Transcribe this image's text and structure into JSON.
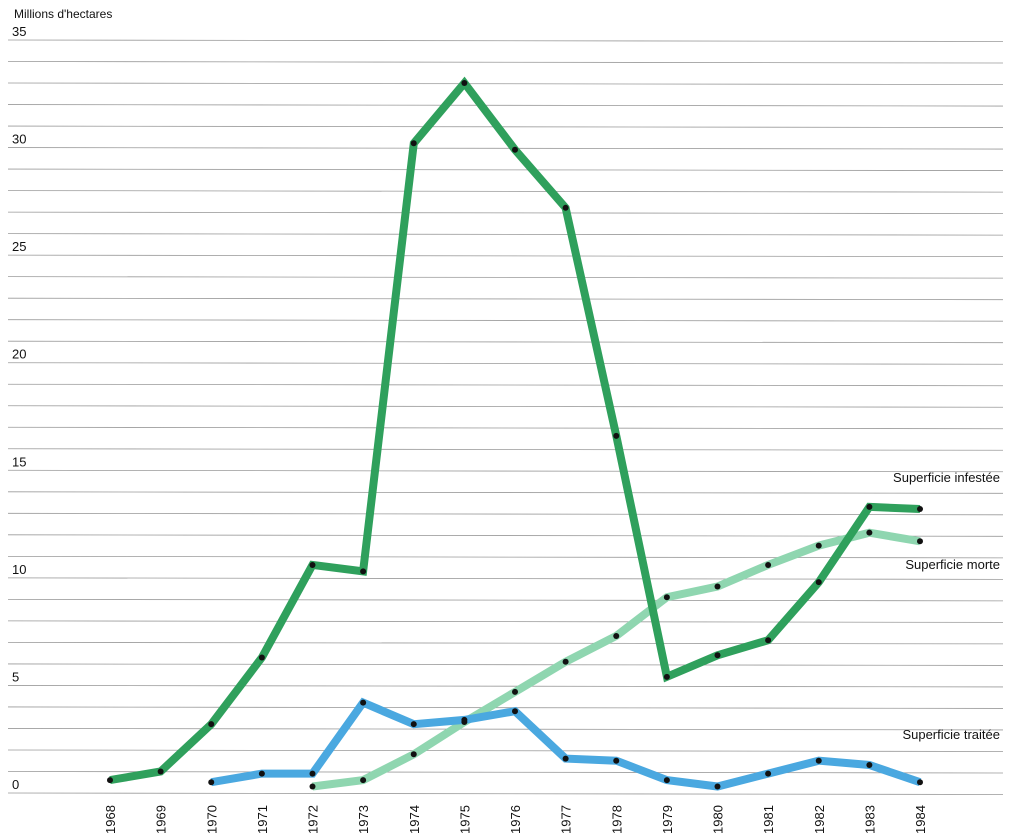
{
  "chart_data": {
    "type": "line",
    "ylabel": "Millions d'hectares",
    "ylim": [
      0,
      35
    ],
    "y_ticks": [
      "0",
      "5",
      "10",
      "15",
      "20",
      "25",
      "30",
      "35"
    ],
    "grid": true,
    "x_ticks": [
      "1968",
      "1969",
      "1970",
      "1971",
      "1972",
      "1973",
      "1974",
      "1975",
      "1976",
      "1977",
      "1978",
      "1979",
      "1980",
      "1981",
      "1982",
      "1983",
      "1984"
    ],
    "series": [
      {
        "name": "Superficie infestée",
        "color": "#2fa05c",
        "x": [
          1968,
          1969,
          1970,
          1971,
          1972,
          1973,
          1974,
          1975,
          1976,
          1977,
          1978,
          1979,
          1980,
          1981,
          1982,
          1983,
          1984
        ],
        "values": [
          0.6,
          1.0,
          3.2,
          6.3,
          10.6,
          10.3,
          30.2,
          33.0,
          29.9,
          27.2,
          16.6,
          5.4,
          6.4,
          7.1,
          9.8,
          13.3,
          13.2
        ]
      },
      {
        "name": "Superficie morte",
        "color": "#8fd6b0",
        "x": [
          1972,
          1973,
          1974,
          1975,
          1976,
          1977,
          1978,
          1979,
          1980,
          1981,
          1982,
          1983,
          1984
        ],
        "values": [
          0.3,
          0.6,
          1.8,
          3.3,
          4.7,
          6.1,
          7.3,
          9.1,
          9.6,
          10.6,
          11.5,
          12.1,
          11.7
        ]
      },
      {
        "name": "Superficie traitée",
        "color": "#4aa8e0",
        "x": [
          1970,
          1971,
          1972,
          1973,
          1974,
          1975,
          1976,
          1977,
          1978,
          1979,
          1980,
          1981,
          1982,
          1983,
          1984
        ],
        "values": [
          0.5,
          0.9,
          0.9,
          4.2,
          3.2,
          3.4,
          3.8,
          1.6,
          1.5,
          0.6,
          0.3,
          0.9,
          1.5,
          1.3,
          0.5
        ]
      }
    ]
  }
}
